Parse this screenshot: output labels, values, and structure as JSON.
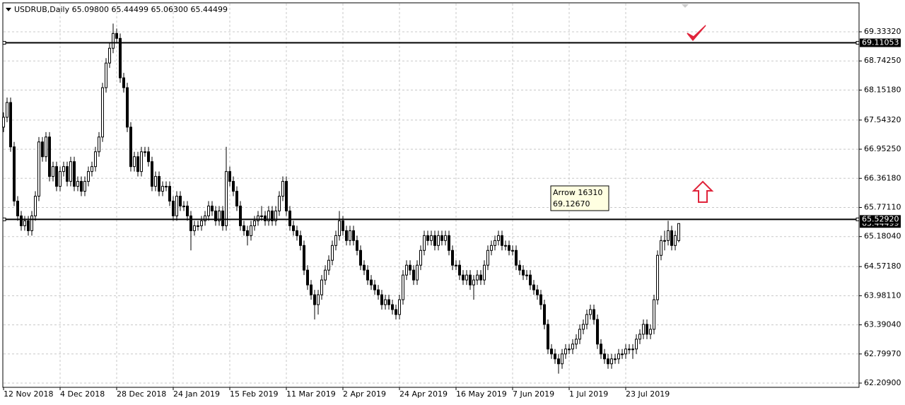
{
  "chart_data": {
    "type": "candlestick",
    "title": "USDRUB,Daily  65.09800 65.44499 65.06300 65.44499",
    "categories": [
      "12 Nov 2018",
      null,
      null,
      null,
      null,
      null,
      null,
      null,
      null,
      null,
      null,
      null,
      null,
      null,
      null,
      null,
      "4 Dec 2018",
      null,
      null,
      null,
      null,
      null,
      null,
      null,
      null,
      null,
      null,
      null,
      null,
      null,
      null,
      null,
      "28 Dec 2018",
      null,
      null,
      null,
      null,
      null,
      null,
      null,
      null,
      null,
      null,
      null,
      null,
      null,
      null,
      null,
      "24 Jan 2019",
      null,
      null,
      null,
      null,
      null,
      null,
      null,
      null,
      null,
      null,
      null,
      null,
      null,
      null,
      null,
      "15 Feb 2019",
      null,
      null,
      null,
      null,
      null,
      null,
      null,
      null,
      null,
      null,
      null,
      null,
      null,
      null,
      null,
      "11 Mar 2019",
      null,
      null,
      null,
      null,
      null,
      null,
      null,
      null,
      null,
      null,
      null,
      null,
      null,
      null,
      null,
      "2 Apr 2019",
      null,
      null,
      null,
      null,
      null,
      null,
      null,
      null,
      null,
      null,
      null,
      null,
      null,
      null,
      null,
      "24 Apr 2019",
      null,
      null,
      null,
      null,
      null,
      null,
      null,
      null,
      null,
      null,
      null,
      null,
      null,
      null,
      null,
      "16 May 2019",
      null,
      null,
      null,
      null,
      null,
      null,
      null,
      null,
      null,
      null,
      null,
      null,
      null,
      null,
      null,
      "7 Jun 2019",
      null,
      null,
      null,
      null,
      null,
      null,
      null,
      null,
      null,
      null,
      null,
      null,
      null,
      null,
      null,
      "1 Jul 2019",
      null,
      null,
      null,
      null,
      null,
      null,
      null,
      null,
      null,
      null,
      null,
      null,
      null,
      null,
      null,
      "23 Jul 2019",
      null,
      null,
      null,
      null,
      null,
      null,
      null,
      null,
      null,
      null,
      null,
      null,
      null,
      null,
      null
    ],
    "ohlc": [
      [
        67.4,
        67.7,
        67.3,
        67.6
      ],
      [
        67.6,
        68.0,
        67.5,
        67.9
      ],
      [
        67.9,
        68.0,
        66.9,
        67.0
      ],
      [
        67.0,
        67.1,
        65.8,
        65.9
      ],
      [
        65.9,
        66.0,
        65.5,
        65.6
      ],
      [
        65.6,
        65.7,
        65.3,
        65.4
      ],
      [
        65.4,
        65.6,
        65.3,
        65.5
      ],
      [
        65.5,
        65.6,
        65.2,
        65.3
      ],
      [
        65.3,
        65.7,
        65.2,
        65.6
      ],
      [
        65.6,
        66.1,
        65.5,
        66.0
      ],
      [
        66.0,
        67.2,
        65.9,
        67.1
      ],
      [
        67.1,
        67.2,
        66.7,
        66.8
      ],
      [
        66.8,
        67.3,
        66.7,
        67.2
      ],
      [
        67.2,
        67.3,
        66.3,
        66.4
      ],
      [
        66.4,
        66.7,
        66.3,
        66.6
      ],
      [
        66.6,
        66.7,
        66.1,
        66.2
      ],
      [
        66.2,
        66.6,
        66.1,
        66.5
      ],
      [
        66.5,
        66.7,
        66.4,
        66.6
      ],
      [
        66.6,
        66.7,
        66.2,
        66.3
      ],
      [
        66.3,
        66.8,
        66.2,
        66.7
      ],
      [
        66.7,
        66.8,
        66.1,
        66.2
      ],
      [
        66.2,
        66.4,
        66.1,
        66.3
      ],
      [
        66.3,
        66.4,
        66.0,
        66.1
      ],
      [
        66.1,
        66.4,
        66.0,
        66.3
      ],
      [
        66.3,
        66.6,
        66.2,
        66.5
      ],
      [
        66.5,
        66.7,
        66.4,
        66.6
      ],
      [
        66.6,
        67.0,
        66.5,
        66.9
      ],
      [
        66.9,
        67.3,
        66.8,
        67.2
      ],
      [
        67.2,
        68.3,
        67.1,
        68.2
      ],
      [
        68.2,
        68.8,
        68.1,
        68.7
      ],
      [
        68.7,
        69.1,
        68.6,
        69.0
      ],
      [
        69.0,
        69.5,
        68.9,
        69.3
      ],
      [
        69.3,
        69.4,
        69.1,
        69.2
      ],
      [
        69.2,
        69.3,
        68.3,
        68.4
      ],
      [
        68.4,
        68.5,
        68.1,
        68.2
      ],
      [
        68.2,
        68.3,
        67.3,
        67.4
      ],
      [
        67.4,
        67.5,
        66.5,
        66.6
      ],
      [
        66.6,
        66.9,
        66.5,
        66.8
      ],
      [
        66.8,
        66.9,
        66.4,
        66.5
      ],
      [
        66.5,
        67.0,
        66.4,
        66.9
      ],
      [
        66.9,
        67.0,
        66.8,
        66.9
      ],
      [
        66.9,
        67.0,
        66.6,
        66.7
      ],
      [
        66.7,
        66.8,
        66.1,
        66.2
      ],
      [
        66.2,
        66.5,
        66.1,
        66.4
      ],
      [
        66.4,
        66.5,
        66.0,
        66.1
      ],
      [
        66.1,
        66.3,
        66.0,
        66.2
      ],
      [
        66.2,
        66.3,
        66.1,
        66.2
      ],
      [
        66.2,
        66.3,
        65.8,
        65.9
      ],
      [
        65.9,
        66.0,
        65.5,
        65.6
      ],
      [
        65.6,
        66.1,
        65.5,
        66.0
      ],
      [
        66.0,
        66.1,
        65.7,
        65.8
      ],
      [
        65.8,
        65.9,
        65.7,
        65.8
      ],
      [
        65.8,
        65.9,
        65.5,
        65.6
      ],
      [
        65.6,
        65.7,
        64.9,
        65.3
      ],
      [
        65.3,
        65.5,
        65.2,
        65.4
      ],
      [
        65.4,
        65.5,
        65.3,
        65.4
      ],
      [
        65.4,
        65.6,
        65.3,
        65.5
      ],
      [
        65.5,
        65.7,
        65.4,
        65.6
      ],
      [
        65.6,
        65.9,
        65.5,
        65.8
      ],
      [
        65.8,
        65.9,
        65.6,
        65.7
      ],
      [
        65.7,
        65.8,
        65.4,
        65.5
      ],
      [
        65.5,
        65.8,
        65.4,
        65.7
      ],
      [
        65.7,
        65.8,
        65.3,
        65.4
      ],
      [
        65.4,
        67.0,
        65.3,
        66.5
      ],
      [
        66.5,
        66.6,
        66.2,
        66.3
      ],
      [
        66.3,
        66.4,
        66.0,
        66.1
      ],
      [
        66.1,
        66.2,
        65.7,
        65.8
      ],
      [
        65.8,
        65.9,
        65.3,
        65.4
      ],
      [
        65.4,
        65.5,
        65.2,
        65.3
      ],
      [
        65.3,
        65.4,
        65.0,
        65.2
      ],
      [
        65.2,
        65.5,
        65.1,
        65.4
      ],
      [
        65.4,
        65.6,
        65.3,
        65.5
      ],
      [
        65.5,
        65.7,
        65.4,
        65.6
      ],
      [
        65.6,
        65.8,
        65.5,
        65.6
      ],
      [
        65.6,
        65.7,
        65.4,
        65.5
      ],
      [
        65.5,
        65.8,
        65.4,
        65.7
      ],
      [
        65.7,
        65.8,
        65.4,
        65.5
      ],
      [
        65.5,
        65.8,
        65.4,
        65.7
      ],
      [
        65.7,
        66.1,
        65.6,
        66.0
      ],
      [
        66.0,
        66.4,
        65.9,
        66.3
      ],
      [
        66.3,
        66.4,
        65.6,
        65.7
      ],
      [
        65.7,
        65.8,
        65.3,
        65.4
      ],
      [
        65.4,
        65.5,
        65.2,
        65.3
      ],
      [
        65.3,
        65.4,
        65.1,
        65.2
      ],
      [
        65.2,
        65.3,
        64.9,
        65.0
      ],
      [
        65.0,
        65.1,
        64.4,
        64.5
      ],
      [
        64.5,
        64.6,
        64.1,
        64.2
      ],
      [
        64.2,
        64.3,
        63.9,
        64.0
      ],
      [
        64.0,
        64.1,
        63.5,
        63.8
      ],
      [
        63.8,
        64.1,
        63.6,
        64.0
      ],
      [
        64.0,
        64.4,
        63.9,
        64.3
      ],
      [
        64.3,
        64.6,
        64.2,
        64.5
      ],
      [
        64.5,
        64.8,
        64.4,
        64.7
      ],
      [
        64.7,
        65.1,
        64.6,
        65.0
      ],
      [
        65.0,
        65.3,
        64.9,
        65.2
      ],
      [
        65.2,
        65.7,
        65.1,
        65.5
      ],
      [
        65.5,
        65.6,
        65.2,
        65.3
      ],
      [
        65.3,
        65.4,
        65.0,
        65.1
      ],
      [
        65.1,
        65.4,
        65.0,
        65.3
      ],
      [
        65.3,
        65.4,
        65.0,
        65.1
      ],
      [
        65.1,
        65.2,
        64.8,
        64.9
      ],
      [
        64.9,
        65.0,
        64.5,
        64.6
      ],
      [
        64.6,
        64.7,
        64.4,
        64.5
      ],
      [
        64.5,
        64.6,
        64.2,
        64.3
      ],
      [
        64.3,
        64.4,
        64.1,
        64.2
      ],
      [
        64.2,
        64.3,
        64.0,
        64.1
      ],
      [
        64.1,
        64.2,
        63.9,
        64.0
      ],
      [
        64.0,
        64.1,
        63.7,
        63.8
      ],
      [
        63.8,
        64.0,
        63.7,
        63.9
      ],
      [
        63.9,
        64.0,
        63.7,
        63.8
      ],
      [
        63.8,
        63.9,
        63.6,
        63.7
      ],
      [
        63.7,
        63.8,
        63.5,
        63.6
      ],
      [
        63.6,
        64.0,
        63.5,
        63.9
      ],
      [
        63.9,
        64.5,
        63.8,
        64.4
      ],
      [
        64.4,
        64.7,
        64.3,
        64.6
      ],
      [
        64.6,
        64.7,
        64.4,
        64.5
      ],
      [
        64.5,
        64.6,
        64.2,
        64.3
      ],
      [
        64.3,
        64.7,
        64.2,
        64.6
      ],
      [
        64.6,
        65.0,
        64.5,
        64.9
      ],
      [
        64.9,
        65.3,
        64.8,
        65.2
      ],
      [
        65.2,
        65.3,
        65.0,
        65.1
      ],
      [
        65.1,
        65.3,
        65.0,
        65.2
      ],
      [
        65.2,
        65.3,
        64.9,
        65.0
      ],
      [
        65.0,
        65.3,
        64.9,
        65.2
      ],
      [
        65.2,
        65.3,
        65.0,
        65.1
      ],
      [
        65.1,
        65.3,
        65.0,
        65.2
      ],
      [
        65.2,
        65.3,
        64.8,
        64.9
      ],
      [
        64.9,
        65.0,
        64.5,
        64.6
      ],
      [
        64.6,
        64.7,
        64.5,
        64.6
      ],
      [
        64.6,
        64.7,
        64.3,
        64.4
      ],
      [
        64.4,
        64.5,
        64.2,
        64.3
      ],
      [
        64.3,
        64.5,
        64.2,
        64.4
      ],
      [
        64.4,
        64.5,
        64.1,
        64.2
      ],
      [
        64.2,
        64.4,
        63.9,
        64.3
      ],
      [
        64.3,
        64.5,
        64.2,
        64.4
      ],
      [
        64.4,
        64.5,
        64.2,
        64.3
      ],
      [
        64.3,
        64.7,
        64.2,
        64.6
      ],
      [
        64.6,
        65.0,
        64.5,
        64.9
      ],
      [
        64.9,
        65.1,
        64.8,
        65.0
      ],
      [
        65.0,
        65.2,
        64.9,
        65.1
      ],
      [
        65.1,
        65.3,
        65.0,
        65.2
      ],
      [
        65.2,
        65.3,
        64.9,
        65.0
      ],
      [
        65.0,
        65.1,
        64.9,
        65.0
      ],
      [
        65.0,
        65.1,
        64.8,
        64.9
      ],
      [
        64.9,
        65.0,
        64.8,
        64.9
      ],
      [
        64.9,
        65.0,
        64.5,
        64.6
      ],
      [
        64.6,
        64.7,
        64.4,
        64.5
      ],
      [
        64.5,
        64.6,
        64.3,
        64.4
      ],
      [
        64.4,
        64.5,
        64.3,
        64.4
      ],
      [
        64.4,
        64.5,
        64.1,
        64.2
      ],
      [
        64.2,
        64.3,
        64.0,
        64.1
      ],
      [
        64.1,
        64.2,
        63.9,
        64.0
      ],
      [
        64.0,
        64.1,
        63.7,
        63.8
      ],
      [
        63.8,
        63.9,
        63.3,
        63.4
      ],
      [
        63.4,
        63.5,
        62.8,
        62.9
      ],
      [
        62.9,
        63.0,
        62.7,
        62.8
      ],
      [
        62.8,
        62.9,
        62.6,
        62.7
      ],
      [
        62.7,
        62.8,
        62.4,
        62.6
      ],
      [
        62.6,
        62.9,
        62.5,
        62.8
      ],
      [
        62.8,
        63.0,
        62.7,
        62.9
      ],
      [
        62.9,
        63.0,
        62.8,
        62.9
      ],
      [
        62.9,
        63.1,
        62.8,
        63.0
      ],
      [
        63.0,
        63.2,
        62.9,
        63.1
      ],
      [
        63.1,
        63.4,
        63.0,
        63.3
      ],
      [
        63.3,
        63.5,
        63.2,
        63.4
      ],
      [
        63.4,
        63.7,
        63.3,
        63.6
      ],
      [
        63.6,
        63.8,
        63.5,
        63.7
      ],
      [
        63.7,
        63.8,
        63.4,
        63.5
      ],
      [
        63.5,
        63.6,
        62.9,
        63.0
      ],
      [
        63.0,
        63.1,
        62.7,
        62.8
      ],
      [
        62.8,
        62.9,
        62.6,
        62.7
      ],
      [
        62.7,
        62.8,
        62.5,
        62.6
      ],
      [
        62.6,
        62.8,
        62.5,
        62.7
      ],
      [
        62.7,
        62.8,
        62.6,
        62.7
      ],
      [
        62.7,
        62.9,
        62.6,
        62.8
      ],
      [
        62.8,
        62.9,
        62.7,
        62.8
      ],
      [
        62.8,
        63.0,
        62.7,
        62.9
      ],
      [
        62.9,
        63.0,
        62.8,
        62.9
      ],
      [
        62.9,
        63.0,
        62.7,
        62.9
      ],
      [
        62.9,
        63.2,
        62.8,
        63.1
      ],
      [
        63.1,
        63.3,
        63.0,
        63.2
      ],
      [
        63.2,
        63.5,
        63.1,
        63.4
      ],
      [
        63.4,
        63.5,
        63.1,
        63.2
      ],
      [
        63.2,
        63.4,
        63.1,
        63.3
      ],
      [
        63.3,
        64.0,
        63.2,
        63.9
      ],
      [
        63.9,
        64.9,
        63.8,
        64.8
      ],
      [
        64.8,
        65.2,
        64.7,
        65.1
      ],
      [
        65.1,
        65.3,
        64.9,
        65.1
      ],
      [
        65.1,
        65.5,
        65.0,
        65.3
      ],
      [
        65.3,
        65.4,
        64.9,
        65.0
      ],
      [
        65.0,
        65.3,
        64.9,
        65.2
      ],
      [
        65.098,
        65.44499,
        65.063,
        65.44499
      ]
    ],
    "ylim": [
      62.123,
      69.921
    ],
    "yticks": [
      {
        "value": 69.3332,
        "label": "69.33320"
      },
      {
        "value": 68.7425,
        "label": "68.74250"
      },
      {
        "value": 68.1518,
        "label": "68.15180"
      },
      {
        "value": 67.5432,
        "label": "67.54320"
      },
      {
        "value": 66.9525,
        "label": "66.95250"
      },
      {
        "value": 66.3618,
        "label": "66.36180"
      },
      {
        "value": 65.7711,
        "label": "65.77110"
      },
      {
        "value": 65.1804,
        "label": "65.18040"
      },
      {
        "value": 64.5718,
        "label": "64.57180"
      },
      {
        "value": 63.9811,
        "label": "63.98110"
      },
      {
        "value": 63.3904,
        "label": "63.39040"
      },
      {
        "value": 62.7997,
        "label": "62.79970"
      },
      {
        "value": 62.209,
        "label": "62.20900"
      }
    ],
    "grid": true,
    "horizontal_lines": [
      {
        "value": 69.11053,
        "label": "69.11053"
      },
      {
        "value": 65.5292,
        "label": "65.52920"
      }
    ],
    "current_price": {
      "value": 65.44499,
      "label": "65.44499"
    },
    "annotation_lines": [
      "Arrow 16310",
      "69.12670"
    ],
    "bull_color": "#ffffff",
    "bear_color": "#000000",
    "line_color": "#000000"
  }
}
